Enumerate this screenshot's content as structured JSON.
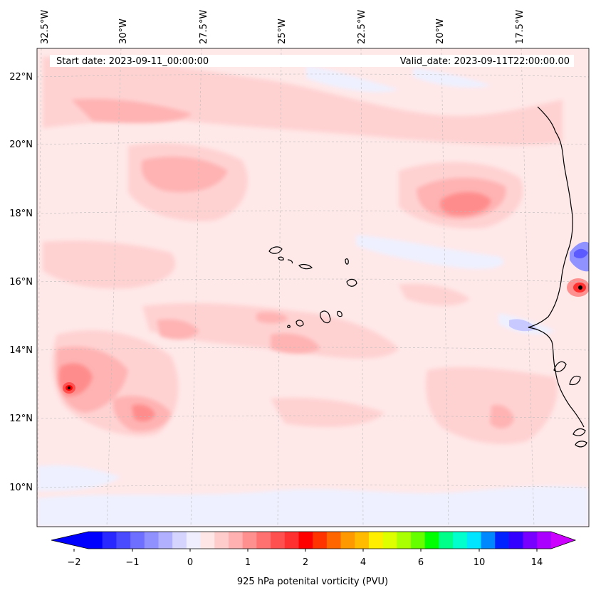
{
  "map": {
    "start_date_text": "Start date: 2023-09-11_00:00:00",
    "valid_date_text": "Valid_date: 2023-09-11T22:00:00.00",
    "lon_labels": [
      "32.5°W",
      "30°W",
      "27.5°W",
      "25°W",
      "22.5°W",
      "20°W",
      "17.5°W"
    ],
    "lat_labels": [
      "22°N",
      "20°N",
      "18°N",
      "16°N",
      "14°N",
      "12°N",
      "10°N"
    ]
  },
  "colorbar": {
    "label": "925 hPa potenital vorticity (PVU)",
    "tick_labels": [
      "−2",
      "−1",
      "0",
      "1",
      "2",
      "4",
      "6",
      "10",
      "14"
    ],
    "extend": "both",
    "colors": [
      "#0000ff",
      "#2828ff",
      "#4a4aff",
      "#6e6eff",
      "#9090ff",
      "#b0b0ff",
      "#d4d4ff",
      "#eeeeff",
      "#ffe6e6",
      "#ffcccc",
      "#ffb0b0",
      "#ff9090",
      "#ff7070",
      "#ff5050",
      "#ff3030",
      "#ff0000",
      "#ff3300",
      "#ff6600",
      "#ff9900",
      "#ffbb00",
      "#ffee00",
      "#ddff00",
      "#aaff00",
      "#66ff00",
      "#00ff00",
      "#00ff88",
      "#00ffcc",
      "#00e5ff",
      "#0088ff",
      "#0022ff",
      "#3300ff",
      "#7700ff",
      "#aa00ff"
    ],
    "under_color": "#0000ff",
    "over_color": "#cc00ff"
  },
  "colors": {
    "base_field": "#ffe8e8",
    "light_pink": "#ffd2d2",
    "mid_pink": "#ffb3b3",
    "strong_pink": "#ff8c8c",
    "red_core": "#ff3030",
    "light_blue": "#eef0ff",
    "blue": "#8f92ff",
    "coast": "#000000"
  }
}
